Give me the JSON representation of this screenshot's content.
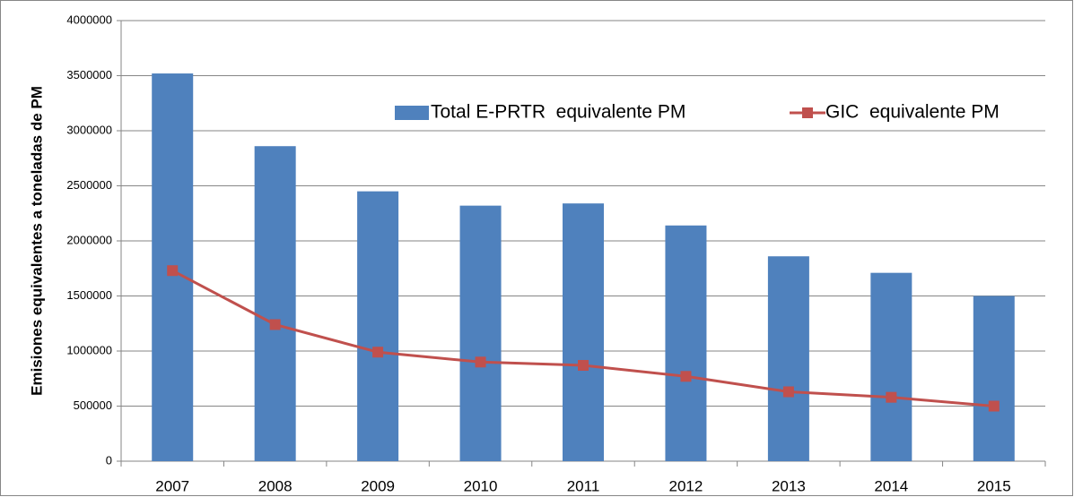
{
  "chart_data": {
    "type": "bar",
    "y_label": "Emisiones equivalentes a toneladas de PM",
    "categories": [
      "2007",
      "2008",
      "2009",
      "2010",
      "2011",
      "2012",
      "2013",
      "2014",
      "2015"
    ],
    "series": [
      {
        "name": "Total E-PRTR  equivalente PM",
        "type": "bar",
        "color": "#4f81bd",
        "values": [
          3520000,
          2860000,
          2450000,
          2320000,
          2340000,
          2140000,
          1860000,
          1710000,
          1500000
        ]
      },
      {
        "name": "GIC  equivalente PM",
        "type": "line",
        "color": "#c0504d",
        "values": [
          1730000,
          1240000,
          990000,
          900000,
          870000,
          770000,
          630000,
          580000,
          500000
        ]
      }
    ],
    "ylim": [
      0,
      4000000
    ],
    "yticks": [
      0,
      500000,
      1000000,
      1500000,
      2000000,
      2500000,
      3000000,
      3500000,
      4000000
    ],
    "grid": true,
    "legend": "upper-right"
  }
}
